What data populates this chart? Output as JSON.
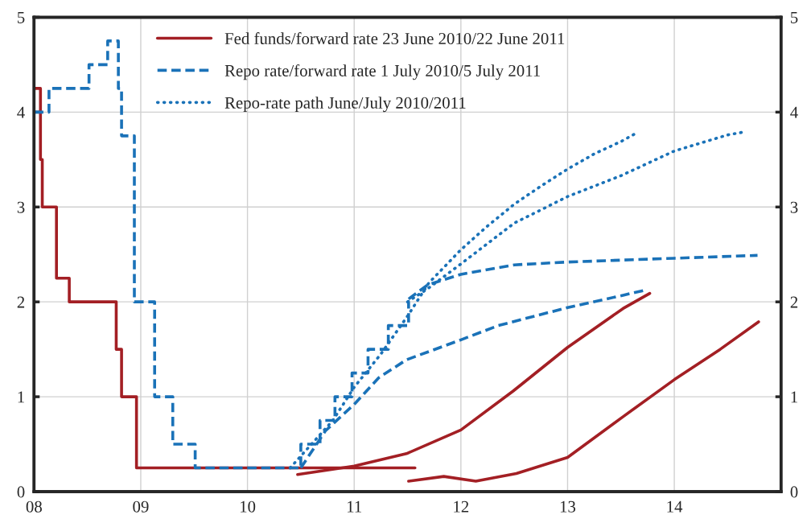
{
  "chart_data": {
    "type": "line",
    "series": [
      {
        "name": "Fed funds/forward rate 23 June 2010/22 June 2011",
        "type": "step",
        "line_style": "solid",
        "color": "#a31f24",
        "x": [
          2008,
          2008.06,
          2008.077,
          2008.21,
          2008.33,
          2008.77,
          2008.82,
          2008.96,
          2011.57
        ],
        "values": [
          4.25,
          3.5,
          3.0,
          2.25,
          2.0,
          1.5,
          1.0,
          0.25,
          0.25
        ]
      },
      {
        "line_style": "solid",
        "color": "#a31f24",
        "x": [
          2010.47,
          2011.0,
          2011.49,
          2012.0,
          2012.49,
          2013.0,
          2013.52,
          2013.77
        ],
        "values": [
          0.18,
          0.27,
          0.4,
          0.65,
          1.06,
          1.52,
          1.93,
          2.09
        ]
      },
      {
        "line_style": "solid",
        "color": "#a31f24",
        "x": [
          2011.51,
          2011.84,
          2012.14,
          2012.52,
          2013.0,
          2013.52,
          2014.0,
          2014.43,
          2014.79
        ],
        "values": [
          0.11,
          0.16,
          0.11,
          0.19,
          0.36,
          0.79,
          1.18,
          1.5,
          1.79
        ]
      },
      {
        "name": "Repo rate/forward rate 1 July 2010/5 July 2011",
        "type": "step",
        "line_style": "dashed",
        "color": "#1a72b8",
        "x": [
          2008,
          2008.14,
          2008.515,
          2008.69,
          2008.79,
          2008.82,
          2008.94,
          2009.13,
          2009.3,
          2009.51,
          2010.5,
          2010.68,
          2010.82,
          2010.98,
          2011.13,
          2011.32,
          2011.51,
          2011.52
        ],
        "values": [
          4.0,
          4.25,
          4.5,
          4.75,
          4.25,
          3.75,
          2.0,
          1.0,
          0.5,
          0.25,
          0.5,
          0.75,
          1.0,
          1.25,
          1.5,
          1.75,
          2.0,
          2.0
        ]
      },
      {
        "line_style": "dashed",
        "color": "#1a72b8",
        "x": [
          2010.5,
          2010.73,
          2011.0,
          2011.23,
          2011.49,
          2012.0,
          2012.35,
          2013.0,
          2013.52,
          2013.75
        ],
        "values": [
          0.25,
          0.64,
          0.92,
          1.2,
          1.39,
          1.6,
          1.75,
          1.94,
          2.07,
          2.13
        ]
      },
      {
        "line_style": "dashed",
        "color": "#1a72b8",
        "x": [
          2011.51,
          2011.69,
          2012.0,
          2012.5,
          2013.0,
          2013.5,
          2014.0,
          2014.78
        ],
        "values": [
          2.03,
          2.18,
          2.29,
          2.39,
          2.42,
          2.44,
          2.46,
          2.49
        ]
      },
      {
        "name": "Repo-rate path June/July 2010/2011",
        "line_style": "dotted",
        "color": "#1a72b8",
        "x": [
          2010.4,
          2010.6,
          2010.8,
          2011.0,
          2011.25,
          2011.5,
          2011.7,
          2012.0,
          2012.25,
          2012.5,
          2012.75,
          2013.0,
          2013.25,
          2013.5,
          2013.63
        ],
        "values": [
          0.25,
          0.5,
          0.75,
          1.1,
          1.45,
          1.85,
          2.2,
          2.55,
          2.8,
          3.03,
          3.22,
          3.4,
          3.56,
          3.69,
          3.77
        ]
      },
      {
        "line_style": "dotted",
        "color": "#1a72b8",
        "x": [
          2011.5,
          2011.69,
          2012.0,
          2012.5,
          2013.0,
          2013.5,
          2014.0,
          2014.5,
          2014.65
        ],
        "values": [
          2.0,
          2.14,
          2.4,
          2.83,
          3.11,
          3.33,
          3.59,
          3.76,
          3.79
        ]
      }
    ],
    "xlim": [
      2008,
      2015
    ],
    "xticks": [
      {
        "value": 2008,
        "label": "08"
      },
      {
        "value": 2009,
        "label": "09"
      },
      {
        "value": 2010,
        "label": "10"
      },
      {
        "value": 2011,
        "label": "11"
      },
      {
        "value": 2012,
        "label": "12"
      },
      {
        "value": 2013,
        "label": "13"
      },
      {
        "value": 2014,
        "label": "14"
      }
    ],
    "ylim": [
      0,
      5
    ],
    "yticks": [
      0,
      1,
      2,
      3,
      4,
      5
    ],
    "y2lim": [
      0,
      5
    ],
    "y2ticks": [
      0,
      1,
      2,
      3,
      4,
      5
    ],
    "grid": true,
    "legend": "top left"
  }
}
